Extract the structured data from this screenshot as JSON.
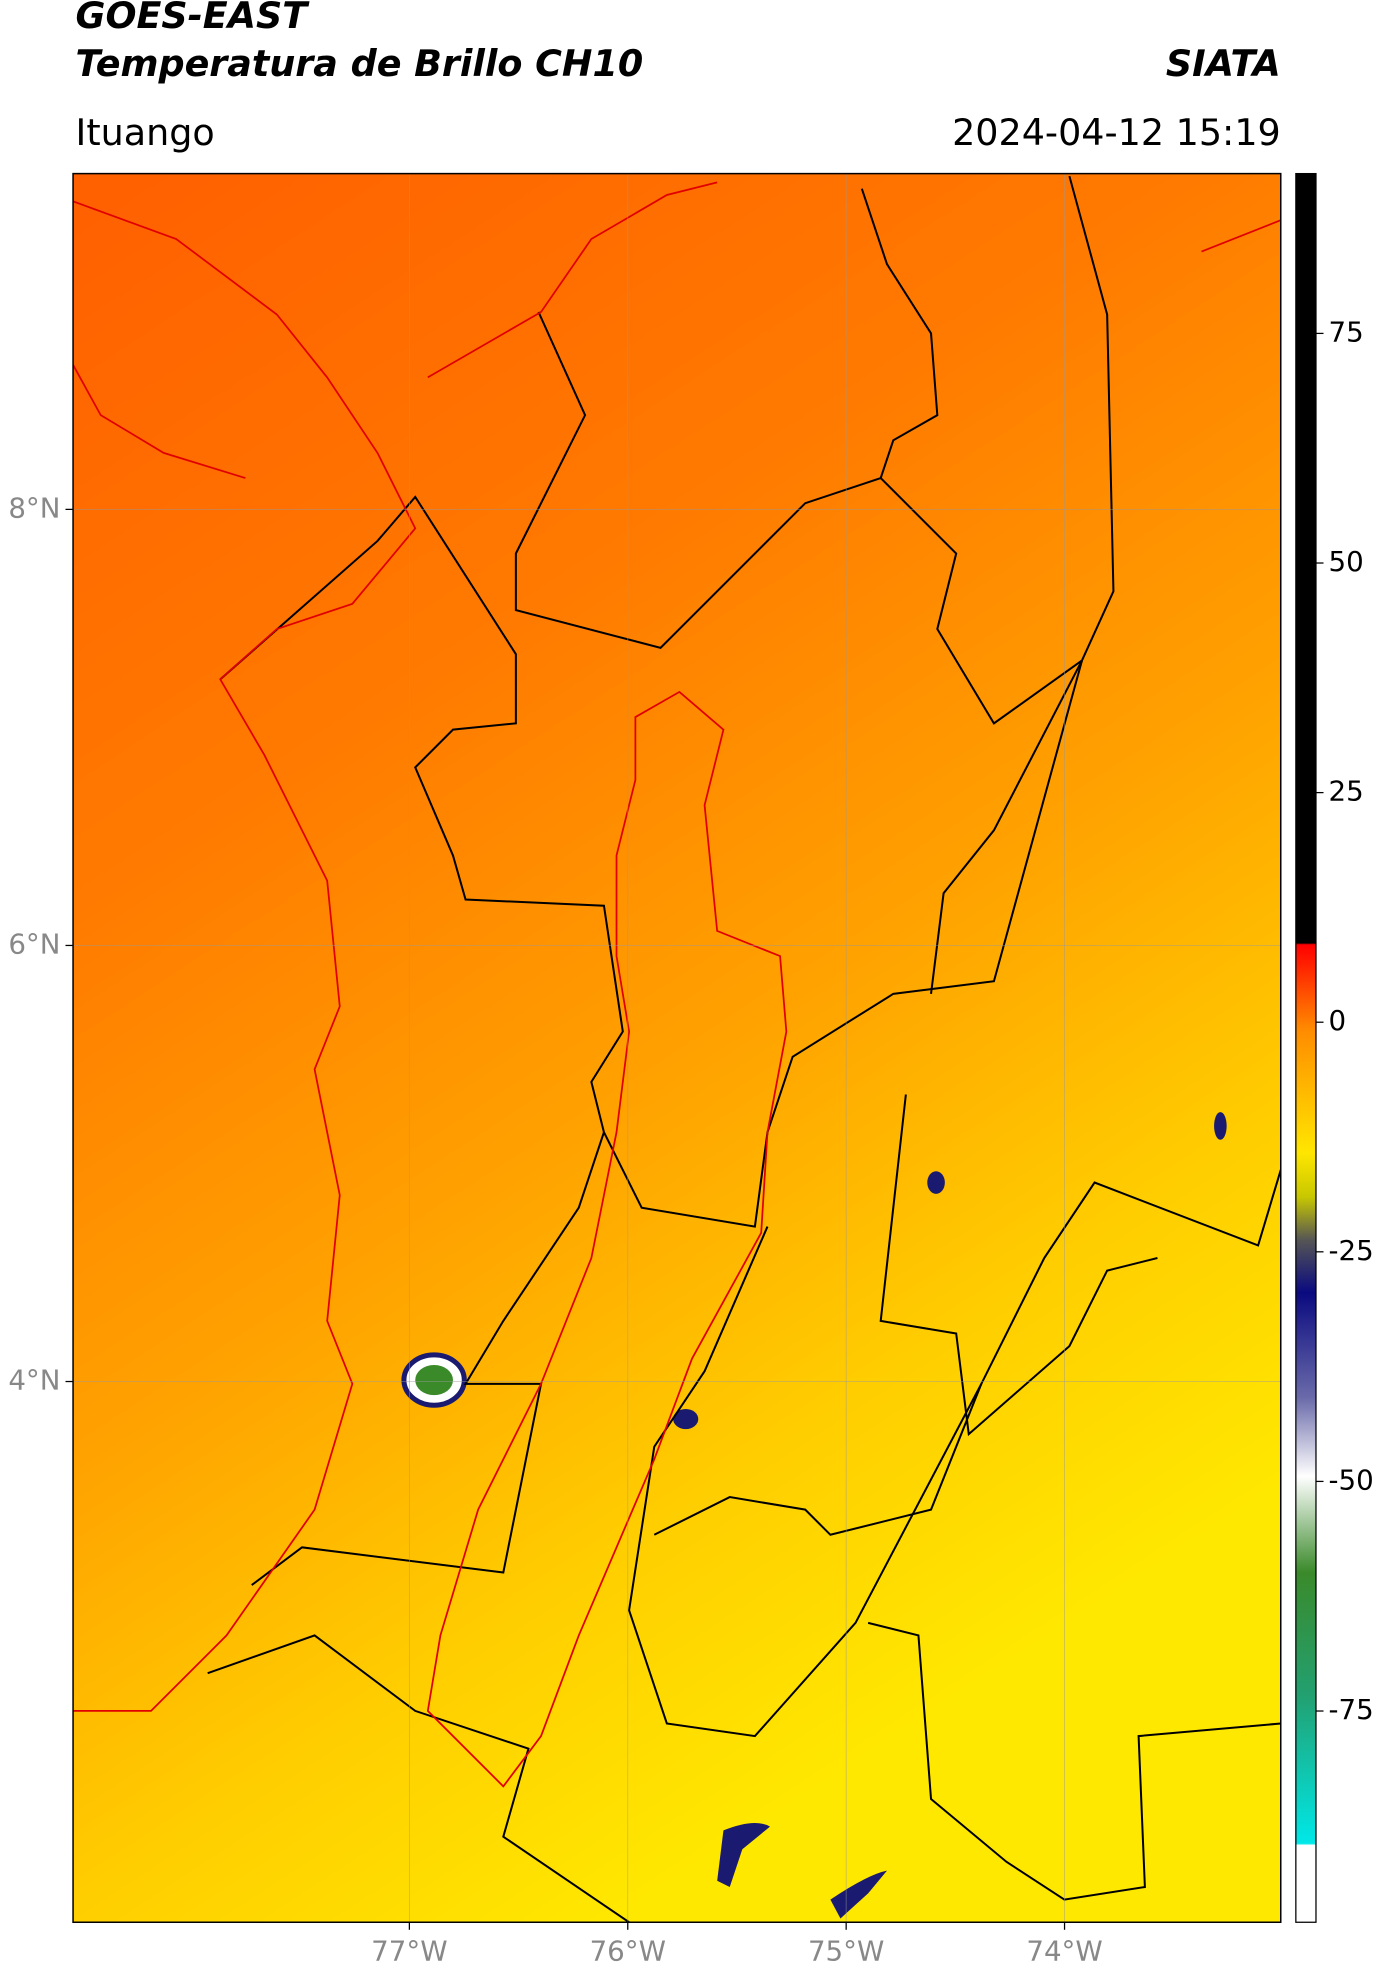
{
  "header": {
    "title": "GOES-EAST",
    "subtitle": "Temperatura de Brillo CH10",
    "source": "SIATA",
    "location": "Ituango",
    "datetime": "2024-04-12 15:19"
  },
  "map": {
    "lon_lim": [
      -78.54,
      -73.01
    ],
    "lat_lim": [
      1.52,
      9.54
    ],
    "lon_ticks": [
      {
        "value": -77,
        "label": "77°W"
      },
      {
        "value": -76,
        "label": "76°W"
      },
      {
        "value": -75,
        "label": "75°W"
      },
      {
        "value": -74,
        "label": "74°W"
      }
    ],
    "lat_ticks": [
      {
        "value": 8,
        "label": "8°N"
      },
      {
        "value": 6,
        "label": "6°N"
      },
      {
        "value": 4,
        "label": "4°N"
      }
    ]
  },
  "colorbar": {
    "lim": [
      -98,
      92.4
    ],
    "ticks": [
      75,
      50,
      25,
      0,
      -25,
      -50,
      -75
    ]
  }
}
